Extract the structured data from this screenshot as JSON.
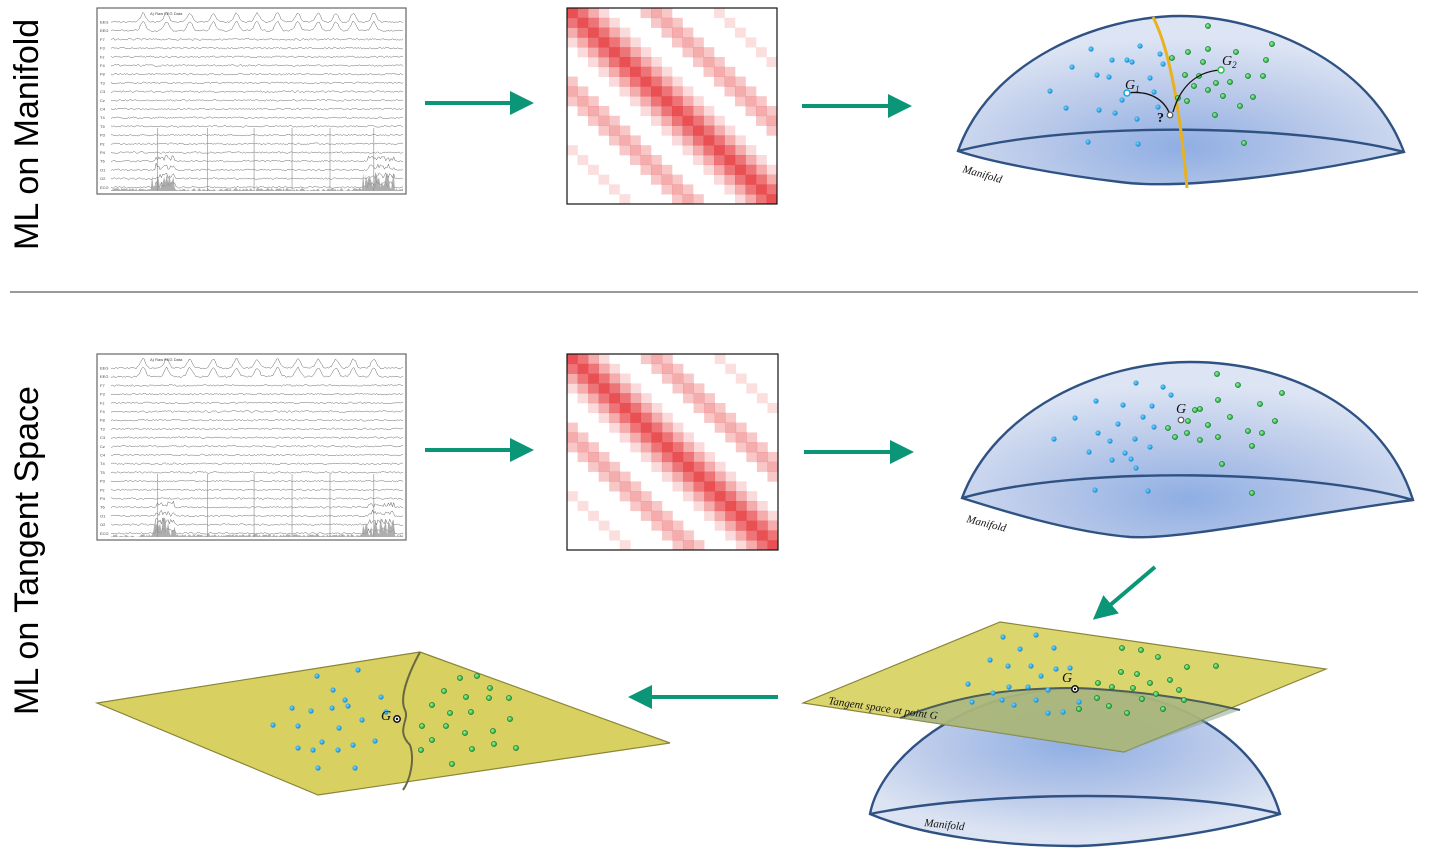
{
  "rows": {
    "top": {
      "label": "ML on Manifold"
    },
    "bottom": {
      "label": "ML on Tangent Space"
    }
  },
  "eeg": {
    "title": "A) Raw EEG Data",
    "channels": [
      "EEG",
      "EEG",
      "F7",
      "F3",
      "Fz",
      "F4",
      "F8",
      "T3",
      "C3",
      "Cz",
      "C4",
      "T4",
      "T5",
      "P3",
      "Pz",
      "P4",
      "T6",
      "O1",
      "O2",
      "ECG"
    ]
  },
  "manifold": {
    "label": "Manifold",
    "g1": "G",
    "g1_sub": "1",
    "g2": "G",
    "g2_sub": "2",
    "unknown": "?",
    "g": "G"
  },
  "tangent": {
    "label": "Tangent space at point G",
    "g": "G"
  },
  "colors": {
    "arrow": "#0b9678",
    "manifold_fill": "#b8c9e8",
    "manifold_edge": "#2f5283",
    "plane_fill": "#cfc95a",
    "blue_points": "#1aa3e8",
    "green_points": "#2bc24a",
    "boundary": "#e8b21e",
    "matrix": "#e8474a"
  }
}
